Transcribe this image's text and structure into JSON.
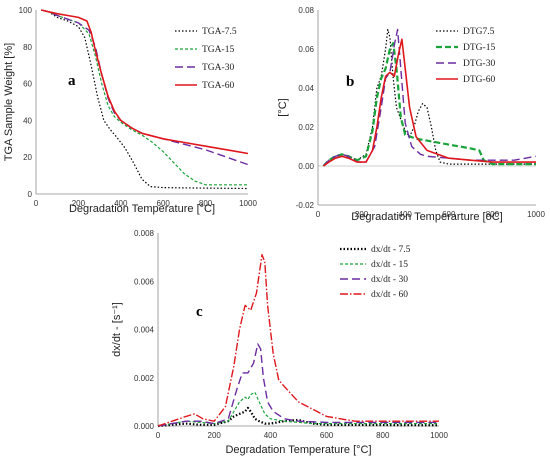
{
  "chart_data": [
    {
      "type": "line",
      "panel_label": "a",
      "xlabel": "Degradation Temperature [°C]",
      "ylabel": "TGA Sample Weight [%]",
      "xlim": [
        0,
        1000
      ],
      "ylim": [
        0,
        100
      ],
      "xticks": [
        0,
        200,
        400,
        600,
        800,
        1000
      ],
      "yticks": [
        0,
        20,
        40,
        60,
        80,
        100
      ],
      "ytick_labels": [
        "0",
        "20",
        "40",
        "60",
        "80",
        "100"
      ],
      "legend_position": "top-right",
      "series": [
        {
          "name": "TGA-7.5",
          "color": "#000000",
          "dash": "1.5,2",
          "width": 1.2,
          "x": [
            25,
            60,
            100,
            150,
            200,
            230,
            260,
            290,
            320,
            350,
            380,
            420,
            460,
            500,
            540,
            600,
            700,
            800,
            1000
          ],
          "y": [
            100,
            99,
            96,
            94,
            91,
            85,
            70,
            53,
            40,
            35,
            31,
            25,
            17,
            8,
            4,
            3.5,
            3.3,
            3.2,
            3
          ]
        },
        {
          "name": "TGA-15",
          "color": "#1aa33a",
          "dash": "3,2",
          "width": 1.2,
          "x": [
            25,
            60,
            100,
            150,
            200,
            250,
            280,
            310,
            340,
            370,
            400,
            450,
            500,
            550,
            600,
            650,
            700,
            750,
            800,
            1000
          ],
          "y": [
            100,
            99,
            97,
            95,
            93,
            87,
            75,
            60,
            48,
            42,
            39,
            35,
            32,
            28,
            23,
            17,
            11,
            7,
            5,
            5
          ]
        },
        {
          "name": "TGA-30",
          "color": "#6a2ca0",
          "dash": "8,4",
          "width": 1.4,
          "x": [
            25,
            60,
            100,
            150,
            200,
            250,
            280,
            310,
            340,
            370,
            400,
            450,
            500,
            600,
            700,
            800,
            900,
            1000
          ],
          "y": [
            100,
            99,
            97,
            95,
            93,
            89,
            80,
            65,
            52,
            44,
            40,
            36,
            33,
            30,
            27,
            24,
            20,
            16
          ]
        },
        {
          "name": "TGA-60",
          "color": "#e0161d",
          "dash": "",
          "width": 1.6,
          "x": [
            25,
            60,
            100,
            150,
            200,
            240,
            260,
            280,
            310,
            340,
            370,
            400,
            450,
            500,
            600,
            700,
            800,
            900,
            1000
          ],
          "y": [
            100,
            99,
            98,
            97,
            96,
            94,
            88,
            78,
            65,
            53,
            45,
            40,
            36,
            33,
            30,
            28,
            26,
            24,
            22
          ]
        }
      ]
    },
    {
      "type": "line",
      "panel_label": "b",
      "xlabel": "Degradation Temperarture [oC]",
      "ylabel": "[°C]",
      "xlim": [
        0,
        1000
      ],
      "ylim": [
        -0.02,
        0.08
      ],
      "xticks": [
        0,
        200,
        400,
        600,
        800,
        1000
      ],
      "yticks": [
        -0.02,
        0,
        0.02,
        0.04,
        0.06,
        0.08
      ],
      "ytick_labels": [
        "-0.02",
        "0.00",
        "0.02",
        "0.04",
        "0.06",
        "0.08"
      ],
      "legend_position": "top-right",
      "series": [
        {
          "name": "DTG7.5",
          "color": "#000000",
          "dash": "1.5,2",
          "width": 1.2,
          "x": [
            25,
            50,
            80,
            110,
            140,
            180,
            220,
            250,
            270,
            290,
            310,
            320,
            330,
            345,
            360,
            380,
            400,
            420,
            440,
            460,
            480,
            500,
            520,
            540,
            560,
            600,
            700,
            800,
            1000
          ],
          "y": [
            0,
            0.003,
            0.005,
            0.006,
            0.005,
            0.003,
            0.006,
            0.02,
            0.04,
            0.046,
            0.06,
            0.07,
            0.066,
            0.045,
            0.03,
            0.024,
            0.018,
            0.015,
            0.02,
            0.028,
            0.032,
            0.03,
            0.02,
            0.008,
            0.002,
            0.001,
            0.001,
            0.001,
            0.001
          ]
        },
        {
          "name": "DTG-15",
          "color": "#1aa33a",
          "dash": "6,3",
          "width": 2.2,
          "x": [
            25,
            50,
            80,
            110,
            140,
            180,
            220,
            250,
            270,
            290,
            310,
            330,
            345,
            360,
            380,
            400,
            450,
            500,
            550,
            600,
            650,
            700,
            740,
            760,
            800,
            1000
          ],
          "y": [
            0,
            0.003,
            0.005,
            0.006,
            0.005,
            0.003,
            0.005,
            0.018,
            0.035,
            0.045,
            0.05,
            0.06,
            0.063,
            0.05,
            0.025,
            0.016,
            0.014,
            0.013,
            0.012,
            0.011,
            0.01,
            0.009,
            0.008,
            0.003,
            0.001,
            0.001
          ]
        },
        {
          "name": "DTG-30",
          "color": "#6a2ca0",
          "dash": "8,4",
          "width": 1.4,
          "x": [
            25,
            50,
            80,
            110,
            140,
            180,
            220,
            260,
            290,
            310,
            330,
            350,
            365,
            380,
            400,
            430,
            470,
            500,
            600,
            700,
            800,
            900,
            1000
          ],
          "y": [
            0,
            0.003,
            0.005,
            0.006,
            0.005,
            0.002,
            0.002,
            0.01,
            0.03,
            0.045,
            0.048,
            0.062,
            0.07,
            0.05,
            0.022,
            0.01,
            0.006,
            0.005,
            0.004,
            0.003,
            0.003,
            0.003,
            0.005
          ]
        },
        {
          "name": "DTG-60",
          "color": "#e0161d",
          "dash": "",
          "width": 1.6,
          "x": [
            25,
            50,
            80,
            110,
            140,
            180,
            220,
            250,
            270,
            290,
            310,
            330,
            350,
            370,
            385,
            400,
            420,
            450,
            500,
            600,
            700,
            800,
            900,
            1000
          ],
          "y": [
            0,
            0.002,
            0.004,
            0.005,
            0.004,
            0.002,
            0.002,
            0.008,
            0.02,
            0.035,
            0.046,
            0.048,
            0.046,
            0.058,
            0.065,
            0.05,
            0.03,
            0.015,
            0.008,
            0.004,
            0.003,
            0.002,
            0.002,
            0.002
          ]
        }
      ]
    },
    {
      "type": "line",
      "panel_label": "c",
      "xlabel": "Degradation Temperature [°C]",
      "ylabel": "dx/dt - [s⁻¹]",
      "xlim": [
        0,
        1000
      ],
      "ylim": [
        0,
        0.008
      ],
      "xticks": [
        0,
        200,
        400,
        600,
        800,
        1000
      ],
      "yticks": [
        0,
        0.002,
        0.004,
        0.006,
        0.008
      ],
      "ytick_labels": [
        "0.000",
        "0.002",
        "0.004",
        "0.006",
        "0.008"
      ],
      "legend_position": "top-right",
      "series": [
        {
          "name": "dx/dt - 7.5",
          "color": "#000000",
          "dash": "1.5,2",
          "width": 2.2,
          "x": [
            0,
            50,
            100,
            150,
            200,
            250,
            270,
            290,
            310,
            320,
            330,
            345,
            360,
            380,
            400,
            450,
            500,
            550,
            600,
            1000
          ],
          "y": [
            0,
            5e-05,
            0.0001,
            5e-05,
            5e-05,
            0.0002,
            0.0004,
            0.0005,
            0.0006,
            0.00075,
            0.0006,
            0.0003,
            0.0002,
            0.0001,
            0.0001,
            0.0002,
            0.00025,
            0.0001,
            5e-05,
            3e-05
          ]
        },
        {
          "name": "dx/dt - 15",
          "color": "#1aa33a",
          "dash": "3,2",
          "width": 1.2,
          "x": [
            0,
            50,
            100,
            150,
            200,
            250,
            270,
            290,
            310,
            320,
            330,
            345,
            360,
            380,
            400,
            450,
            500,
            550,
            600,
            700,
            800,
            1000
          ],
          "y": [
            0,
            0.0001,
            0.0002,
            0.00015,
            0.0001,
            0.0002,
            0.0006,
            0.001,
            0.0012,
            0.0011,
            0.0013,
            0.0014,
            0.001,
            0.0005,
            0.0003,
            0.0002,
            0.00015,
            0.0001,
            0.0001,
            0.0001,
            0.0001,
            0.0001
          ]
        },
        {
          "name": "dx/dt - 30",
          "color": "#6a2ca0",
          "dash": "8,4",
          "width": 1.4,
          "x": [
            0,
            50,
            100,
            150,
            200,
            250,
            280,
            300,
            320,
            340,
            355,
            365,
            375,
            390,
            410,
            450,
            500,
            600,
            700,
            800,
            1000
          ],
          "y": [
            0,
            0.0001,
            0.0002,
            0.0002,
            0.0001,
            0.0003,
            0.0015,
            0.0022,
            0.0022,
            0.0026,
            0.0034,
            0.0032,
            0.002,
            0.001,
            0.0006,
            0.0003,
            0.0002,
            0.00015,
            0.00015,
            0.00015,
            0.00015
          ]
        },
        {
          "name": "dx/dt - 60",
          "color": "#e0161d",
          "dash": "8,2,1.5,2",
          "width": 1.4,
          "x": [
            0,
            50,
            100,
            130,
            160,
            200,
            240,
            270,
            290,
            310,
            330,
            350,
            370,
            380,
            390,
            410,
            430,
            460,
            500,
            600,
            700,
            800,
            1000
          ],
          "y": [
            0,
            0.0002,
            0.0004,
            0.0005,
            0.0003,
            0.0002,
            0.0008,
            0.0025,
            0.004,
            0.005,
            0.0048,
            0.0055,
            0.0071,
            0.0068,
            0.005,
            0.003,
            0.0019,
            0.0015,
            0.001,
            0.0004,
            0.0002,
            0.0002,
            0.0002
          ]
        }
      ]
    }
  ]
}
